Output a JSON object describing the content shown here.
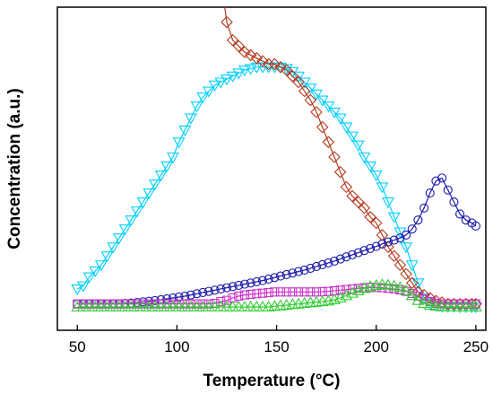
{
  "chart_data": {
    "type": "line",
    "xlabel": "Temperature (°C)",
    "ylabel": "Concentration (a.u.)",
    "xlim": [
      40,
      255
    ],
    "ylim": [
      0,
      100
    ],
    "x_ticks": [
      50,
      100,
      150,
      200,
      250
    ],
    "y_ticks_labeled": false,
    "grid": false,
    "legend": "none",
    "series": [
      {
        "marker": "triangle-down",
        "color": "#00cfff",
        "x": [
          50,
          53,
          56,
          59,
          62,
          65,
          68,
          71,
          74,
          77,
          80,
          83,
          86,
          89,
          92,
          95,
          98,
          101,
          104,
          107,
          110,
          113,
          116,
          119,
          122,
          125,
          128,
          131,
          134,
          137,
          140,
          143,
          146,
          149,
          152,
          155,
          158,
          161,
          164,
          167,
          170,
          173,
          176,
          179,
          182,
          185,
          188,
          191,
          194,
          197,
          200,
          203,
          206,
          209,
          212,
          215,
          218,
          221,
          224,
          227,
          230,
          233,
          236,
          239,
          242,
          245,
          248,
          250
        ],
        "y": [
          6,
          7,
          10,
          12,
          14,
          17,
          20,
          23,
          26,
          29,
          32,
          35,
          38,
          41,
          44,
          47,
          50,
          55,
          59,
          63,
          67,
          70,
          72,
          74,
          75,
          76,
          77,
          78,
          79,
          79.5,
          80,
          80,
          80,
          80,
          80,
          79.5,
          78.5,
          77,
          75,
          73,
          71,
          69,
          67,
          65,
          63,
          60,
          57,
          54,
          50,
          47,
          44,
          40,
          35,
          30,
          25,
          20,
          14,
          8,
          3,
          1.2,
          0.5,
          0.2,
          0.1,
          0.1,
          0,
          0,
          0,
          0
        ]
      },
      {
        "marker": "diamond",
        "color": "#b23a1e",
        "x": [
          122,
          125,
          128,
          131,
          134,
          137,
          140,
          143,
          146,
          149,
          152,
          155,
          158,
          161,
          164,
          167,
          170,
          173,
          176,
          179,
          182,
          185,
          188,
          191,
          194,
          197,
          200,
          203,
          206,
          209,
          212,
          215,
          218,
          221,
          224,
          227,
          230,
          233,
          236,
          239,
          242,
          245,
          248,
          250
        ],
        "y": [
          110,
          95,
          89,
          87,
          85,
          84,
          83,
          82,
          81,
          81,
          80,
          79,
          77,
          75,
          72,
          69,
          65,
          60,
          55,
          50,
          45,
          40,
          37,
          35,
          33,
          30,
          28,
          24,
          20,
          17,
          14,
          11,
          8,
          5,
          4,
          3,
          2,
          1.5,
          1,
          1,
          1,
          1,
          1,
          1
        ]
      },
      {
        "marker": "circle",
        "color": "#1a1aa8",
        "x": [
          50,
          53,
          56,
          59,
          62,
          65,
          68,
          71,
          74,
          77,
          80,
          83,
          86,
          89,
          92,
          95,
          98,
          101,
          104,
          107,
          110,
          113,
          116,
          119,
          122,
          125,
          128,
          131,
          134,
          137,
          140,
          143,
          146,
          149,
          152,
          155,
          158,
          161,
          164,
          167,
          170,
          173,
          176,
          179,
          182,
          185,
          188,
          191,
          194,
          197,
          200,
          203,
          206,
          209,
          212,
          215,
          218,
          221,
          224,
          227,
          230,
          233,
          236,
          239,
          242,
          245,
          248,
          250
        ],
        "y": [
          1,
          1,
          1,
          1,
          1,
          1,
          1,
          1,
          1.2,
          1.3,
          1.5,
          1.7,
          1.9,
          2.1,
          2.4,
          2.7,
          3,
          3.3,
          3.6,
          4,
          4.4,
          4.8,
          5.2,
          5.6,
          6,
          6.4,
          6.8,
          7.2,
          7.6,
          8,
          8.4,
          8.8,
          9.3,
          9.8,
          10.3,
          10.8,
          11.3,
          11.8,
          12.3,
          12.9,
          13.5,
          14.1,
          14.7,
          15.3,
          16,
          16.7,
          17.4,
          18.1,
          18.8,
          19.5,
          20.2,
          21,
          21.7,
          22.3,
          23,
          24,
          26,
          29,
          33,
          38,
          42,
          43,
          39,
          35,
          31,
          29,
          28,
          27
        ]
      },
      {
        "marker": "square",
        "color": "#cc33cc",
        "x": [
          50,
          53,
          56,
          59,
          62,
          65,
          68,
          71,
          74,
          77,
          80,
          83,
          86,
          89,
          92,
          95,
          98,
          101,
          104,
          107,
          110,
          113,
          116,
          119,
          122,
          125,
          128,
          131,
          134,
          137,
          140,
          143,
          146,
          149,
          152,
          155,
          158,
          161,
          164,
          167,
          170,
          173,
          176,
          179,
          182,
          185,
          188,
          191,
          194,
          197,
          200,
          203,
          206,
          209,
          212,
          215,
          218,
          221,
          224,
          227,
          230,
          233,
          236,
          239,
          242,
          245,
          248,
          250
        ],
        "y": [
          1,
          1,
          1,
          1,
          1,
          1,
          1,
          1,
          1,
          1,
          1,
          1,
          1,
          1,
          1,
          1,
          1,
          1,
          1,
          1,
          1,
          1,
          1,
          1.2,
          1.8,
          2.2,
          3,
          3.6,
          4,
          4.2,
          4.4,
          4.6,
          4.8,
          5,
          5,
          5,
          5,
          5,
          5,
          5,
          5,
          5.1,
          5.2,
          5.4,
          5.6,
          5.8,
          6,
          6.2,
          6.4,
          6.5,
          6.5,
          6.4,
          6.2,
          6,
          5.7,
          5.2,
          4.5,
          3.6,
          2.6,
          1.8,
          1.2,
          1,
          1,
          1,
          1,
          1,
          1,
          1
        ]
      },
      {
        "marker": "triangle-up",
        "color": "#33cc33",
        "x": [
          50,
          53,
          56,
          59,
          62,
          65,
          68,
          71,
          74,
          77,
          80,
          83,
          86,
          89,
          92,
          95,
          98,
          101,
          104,
          107,
          110,
          113,
          116,
          119,
          122,
          125,
          128,
          131,
          134,
          137,
          140,
          143,
          146,
          149,
          152,
          155,
          158,
          161,
          164,
          167,
          170,
          173,
          176,
          179,
          182,
          185,
          188,
          191,
          194,
          197,
          200,
          203,
          206,
          209,
          212,
          215,
          218,
          221,
          224,
          227,
          230,
          233,
          236,
          239,
          242,
          245,
          248,
          250
        ],
        "y": [
          0,
          0,
          0,
          0,
          0,
          0,
          0,
          0,
          0,
          0,
          0,
          0,
          0,
          0,
          0,
          0,
          0,
          0,
          0,
          0,
          0,
          0,
          0,
          0,
          0,
          0,
          0,
          0,
          0,
          0,
          0,
          0,
          0,
          0.2,
          0.4,
          0.6,
          0.8,
          1,
          1.2,
          1.4,
          1.6,
          1.8,
          2,
          2.4,
          3,
          3.8,
          4.6,
          5.4,
          6.2,
          6.8,
          7.2,
          7.4,
          7.3,
          7,
          6.5,
          5.4,
          3.8,
          2.2,
          1.2,
          0.6,
          0.3,
          0.1,
          0,
          0,
          0,
          0,
          0,
          0
        ]
      }
    ]
  }
}
